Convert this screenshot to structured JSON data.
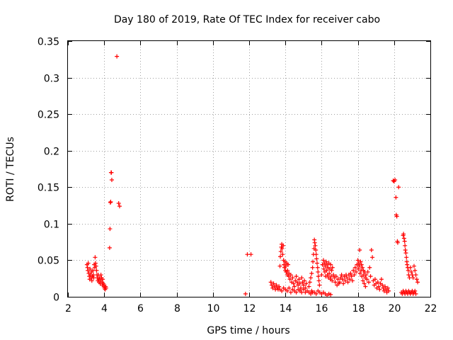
{
  "chart_data": {
    "type": "scatter",
    "title": "Day 180 of 2019, Rate Of TEC Index for receiver cabo",
    "xlabel": "GPS time / hours",
    "ylabel": "ROTI / TECUs",
    "xlim": [
      2,
      22
    ],
    "ylim": [
      0,
      0.35
    ],
    "grid": true,
    "marker": "+",
    "color": "#ff0000",
    "x_ticks": [
      "2",
      "4",
      "6",
      "8",
      "10",
      "12",
      "14",
      "16",
      "18",
      "20",
      "22"
    ],
    "y_ticks": [
      "0",
      "0.05",
      "0.1",
      "0.15",
      "0.2",
      "0.25",
      "0.3",
      "0.35"
    ],
    "series": [
      {
        "name": "ROTI",
        "points": [
          [
            3.05,
            0.044
          ],
          [
            3.08,
            0.04
          ],
          [
            3.1,
            0.036
          ],
          [
            3.12,
            0.046
          ],
          [
            3.15,
            0.032
          ],
          [
            3.18,
            0.028
          ],
          [
            3.2,
            0.024
          ],
          [
            3.22,
            0.038
          ],
          [
            3.25,
            0.03
          ],
          [
            3.28,
            0.026
          ],
          [
            3.3,
            0.034
          ],
          [
            3.32,
            0.022
          ],
          [
            3.35,
            0.028
          ],
          [
            3.38,
            0.036
          ],
          [
            3.4,
            0.03
          ],
          [
            3.42,
            0.026
          ],
          [
            3.45,
            0.044
          ],
          [
            3.48,
            0.04
          ],
          [
            3.5,
            0.054
          ],
          [
            3.52,
            0.046
          ],
          [
            3.55,
            0.042
          ],
          [
            3.58,
            0.036
          ],
          [
            3.6,
            0.03
          ],
          [
            3.62,
            0.026
          ],
          [
            3.65,
            0.022
          ],
          [
            3.68,
            0.03
          ],
          [
            3.7,
            0.024
          ],
          [
            3.72,
            0.02
          ],
          [
            3.75,
            0.026
          ],
          [
            3.78,
            0.018
          ],
          [
            3.8,
            0.022
          ],
          [
            3.82,
            0.03
          ],
          [
            3.85,
            0.026
          ],
          [
            3.88,
            0.02
          ],
          [
            3.9,
            0.016
          ],
          [
            3.92,
            0.024
          ],
          [
            3.95,
            0.018
          ],
          [
            3.98,
            0.014
          ],
          [
            4.0,
            0.016
          ],
          [
            4.02,
            0.012
          ],
          [
            4.05,
            0.01
          ],
          [
            4.08,
            0.014
          ],
          [
            4.1,
            0.012
          ],
          [
            4.3,
            0.067
          ],
          [
            4.32,
            0.093
          ],
          [
            4.34,
            0.129
          ],
          [
            4.36,
            0.13
          ],
          [
            4.38,
            0.17
          ],
          [
            4.4,
            0.17
          ],
          [
            4.42,
            0.16
          ],
          [
            4.7,
            0.329
          ],
          [
            4.8,
            0.128
          ],
          [
            4.85,
            0.124
          ],
          [
            11.8,
            0.004
          ],
          [
            11.9,
            0.058
          ],
          [
            12.1,
            0.058
          ],
          [
            13.2,
            0.02
          ],
          [
            13.25,
            0.016
          ],
          [
            13.3,
            0.012
          ],
          [
            13.35,
            0.018
          ],
          [
            13.4,
            0.014
          ],
          [
            13.45,
            0.01
          ],
          [
            13.5,
            0.016
          ],
          [
            13.55,
            0.012
          ],
          [
            13.6,
            0.01
          ],
          [
            13.65,
            0.014
          ],
          [
            13.7,
            0.042
          ],
          [
            13.72,
            0.055
          ],
          [
            13.75,
            0.062
          ],
          [
            13.78,
            0.068
          ],
          [
            13.8,
            0.072
          ],
          [
            13.82,
            0.066
          ],
          [
            13.85,
            0.058
          ],
          [
            13.88,
            0.07
          ],
          [
            13.9,
            0.05
          ],
          [
            13.92,
            0.044
          ],
          [
            13.95,
            0.04
          ],
          [
            13.98,
            0.048
          ],
          [
            14.0,
            0.036
          ],
          [
            14.02,
            0.042
          ],
          [
            14.05,
            0.034
          ],
          [
            14.08,
            0.046
          ],
          [
            14.1,
            0.03
          ],
          [
            14.12,
            0.036
          ],
          [
            14.15,
            0.044
          ],
          [
            14.18,
            0.028
          ],
          [
            14.2,
            0.032
          ],
          [
            14.25,
            0.024
          ],
          [
            14.3,
            0.03
          ],
          [
            14.35,
            0.02
          ],
          [
            14.4,
            0.026
          ],
          [
            14.45,
            0.018
          ],
          [
            14.5,
            0.014
          ],
          [
            14.55,
            0.022
          ],
          [
            14.6,
            0.028
          ],
          [
            14.65,
            0.02
          ],
          [
            14.7,
            0.016
          ],
          [
            14.75,
            0.024
          ],
          [
            14.8,
            0.018
          ],
          [
            14.85,
            0.012
          ],
          [
            14.9,
            0.026
          ],
          [
            14.95,
            0.02
          ],
          [
            15.0,
            0.016
          ],
          [
            15.05,
            0.022
          ],
          [
            15.1,
            0.012
          ],
          [
            15.15,
            0.018
          ],
          [
            13.7,
            0.01
          ],
          [
            13.8,
            0.008
          ],
          [
            13.9,
            0.012
          ],
          [
            14.0,
            0.01
          ],
          [
            14.1,
            0.008
          ],
          [
            14.2,
            0.012
          ],
          [
            14.3,
            0.006
          ],
          [
            14.4,
            0.01
          ],
          [
            14.5,
            0.008
          ],
          [
            14.6,
            0.006
          ],
          [
            14.7,
            0.01
          ],
          [
            14.8,
            0.008
          ],
          [
            14.9,
            0.006
          ],
          [
            15.0,
            0.01
          ],
          [
            15.1,
            0.006
          ],
          [
            15.2,
            0.008
          ],
          [
            15.3,
            0.006
          ],
          [
            15.4,
            0.004
          ],
          [
            15.45,
            0.008
          ],
          [
            15.5,
            0.006
          ],
          [
            15.3,
            0.014
          ],
          [
            15.35,
            0.02
          ],
          [
            15.4,
            0.026
          ],
          [
            15.45,
            0.032
          ],
          [
            15.5,
            0.04
          ],
          [
            15.52,
            0.048
          ],
          [
            15.55,
            0.058
          ],
          [
            15.58,
            0.066
          ],
          [
            15.6,
            0.078
          ],
          [
            15.62,
            0.074
          ],
          [
            15.65,
            0.07
          ],
          [
            15.68,
            0.064
          ],
          [
            15.7,
            0.058
          ],
          [
            15.72,
            0.052
          ],
          [
            15.75,
            0.046
          ],
          [
            15.78,
            0.04
          ],
          [
            15.8,
            0.034
          ],
          [
            15.82,
            0.028
          ],
          [
            15.85,
            0.022
          ],
          [
            15.88,
            0.016
          ],
          [
            15.6,
            0.006
          ],
          [
            15.7,
            0.004
          ],
          [
            15.8,
            0.008
          ],
          [
            15.9,
            0.006
          ],
          [
            16.0,
            0.004
          ],
          [
            16.1,
            0.006
          ],
          [
            16.2,
            0.004
          ],
          [
            16.3,
            0.002
          ],
          [
            16.4,
            0.004
          ],
          [
            16.5,
            0.003
          ],
          [
            16.0,
            0.03
          ],
          [
            16.05,
            0.044
          ],
          [
            16.1,
            0.05
          ],
          [
            16.12,
            0.038
          ],
          [
            16.15,
            0.046
          ],
          [
            16.18,
            0.034
          ],
          [
            16.2,
            0.042
          ],
          [
            16.22,
            0.028
          ],
          [
            16.25,
            0.048
          ],
          [
            16.28,
            0.036
          ],
          [
            16.3,
            0.044
          ],
          [
            16.32,
            0.03
          ],
          [
            16.35,
            0.04
          ],
          [
            16.38,
            0.026
          ],
          [
            16.4,
            0.046
          ],
          [
            16.42,
            0.032
          ],
          [
            16.45,
            0.038
          ],
          [
            16.48,
            0.024
          ],
          [
            16.5,
            0.044
          ],
          [
            16.52,
            0.028
          ],
          [
            16.55,
            0.036
          ],
          [
            16.58,
            0.022
          ],
          [
            16.6,
            0.04
          ],
          [
            16.65,
            0.03
          ],
          [
            16.7,
            0.026
          ],
          [
            16.75,
            0.02
          ],
          [
            16.8,
            0.028
          ],
          [
            16.85,
            0.016
          ],
          [
            16.9,
            0.024
          ],
          [
            16.95,
            0.018
          ],
          [
            17.0,
            0.02
          ],
          [
            17.05,
            0.026
          ],
          [
            17.1,
            0.03
          ],
          [
            17.15,
            0.024
          ],
          [
            17.2,
            0.018
          ],
          [
            17.25,
            0.028
          ],
          [
            17.3,
            0.022
          ],
          [
            17.35,
            0.03
          ],
          [
            17.4,
            0.026
          ],
          [
            17.45,
            0.02
          ],
          [
            17.5,
            0.03
          ],
          [
            17.55,
            0.024
          ],
          [
            17.6,
            0.032
          ],
          [
            17.65,
            0.028
          ],
          [
            17.7,
            0.022
          ],
          [
            17.75,
            0.036
          ],
          [
            17.8,
            0.03
          ],
          [
            17.85,
            0.04
          ],
          [
            17.9,
            0.034
          ],
          [
            17.95,
            0.044
          ],
          [
            18.0,
            0.05
          ],
          [
            18.02,
            0.038
          ],
          [
            18.05,
            0.046
          ],
          [
            18.08,
            0.042
          ],
          [
            18.1,
            0.064
          ],
          [
            18.12,
            0.032
          ],
          [
            18.15,
            0.048
          ],
          [
            18.18,
            0.036
          ],
          [
            18.2,
            0.044
          ],
          [
            18.22,
            0.028
          ],
          [
            18.25,
            0.04
          ],
          [
            18.28,
            0.022
          ],
          [
            18.3,
            0.036
          ],
          [
            18.32,
            0.03
          ],
          [
            18.35,
            0.018
          ],
          [
            18.38,
            0.034
          ],
          [
            18.4,
            0.026
          ],
          [
            18.42,
            0.014
          ],
          [
            18.45,
            0.03
          ],
          [
            18.5,
            0.024
          ],
          [
            18.55,
            0.034
          ],
          [
            18.6,
            0.02
          ],
          [
            18.65,
            0.04
          ],
          [
            18.7,
            0.028
          ],
          [
            18.75,
            0.064
          ],
          [
            18.8,
            0.054
          ],
          [
            18.85,
            0.022
          ],
          [
            18.9,
            0.016
          ],
          [
            18.95,
            0.024
          ],
          [
            19.0,
            0.018
          ],
          [
            19.05,
            0.012
          ],
          [
            19.1,
            0.02
          ],
          [
            19.15,
            0.014
          ],
          [
            19.2,
            0.01
          ],
          [
            19.25,
            0.018
          ],
          [
            19.3,
            0.024
          ],
          [
            19.35,
            0.016
          ],
          [
            19.4,
            0.012
          ],
          [
            19.45,
            0.008
          ],
          [
            19.5,
            0.014
          ],
          [
            19.55,
            0.01
          ],
          [
            19.6,
            0.006
          ],
          [
            19.65,
            0.012
          ],
          [
            19.7,
            0.008
          ],
          [
            19.95,
            0.159
          ],
          [
            20.0,
            0.158
          ],
          [
            20.05,
            0.16
          ],
          [
            20.1,
            0.136
          ],
          [
            20.12,
            0.112
          ],
          [
            20.15,
            0.11
          ],
          [
            20.18,
            0.076
          ],
          [
            20.2,
            0.074
          ],
          [
            20.25,
            0.15
          ],
          [
            20.4,
            0.006
          ],
          [
            20.45,
            0.004
          ],
          [
            20.5,
            0.008
          ],
          [
            20.55,
            0.006
          ],
          [
            20.6,
            0.004
          ],
          [
            20.65,
            0.008
          ],
          [
            20.7,
            0.006
          ],
          [
            20.75,
            0.004
          ],
          [
            20.8,
            0.008
          ],
          [
            20.85,
            0.006
          ],
          [
            20.9,
            0.004
          ],
          [
            20.95,
            0.006
          ],
          [
            21.0,
            0.008
          ],
          [
            21.05,
            0.004
          ],
          [
            21.1,
            0.006
          ],
          [
            21.15,
            0.008
          ],
          [
            21.2,
            0.004
          ],
          [
            20.5,
            0.084
          ],
          [
            20.52,
            0.086
          ],
          [
            20.55,
            0.08
          ],
          [
            20.58,
            0.076
          ],
          [
            20.6,
            0.07
          ],
          [
            20.62,
            0.064
          ],
          [
            20.65,
            0.06
          ],
          [
            20.68,
            0.054
          ],
          [
            20.7,
            0.048
          ],
          [
            20.72,
            0.044
          ],
          [
            20.75,
            0.04
          ],
          [
            20.78,
            0.036
          ],
          [
            20.8,
            0.03
          ],
          [
            20.85,
            0.026
          ],
          [
            20.9,
            0.04
          ],
          [
            20.95,
            0.034
          ],
          [
            21.0,
            0.03
          ],
          [
            21.05,
            0.026
          ],
          [
            21.1,
            0.042
          ],
          [
            21.15,
            0.036
          ],
          [
            21.2,
            0.03
          ],
          [
            21.25,
            0.024
          ],
          [
            21.3,
            0.02
          ]
        ]
      }
    ]
  }
}
